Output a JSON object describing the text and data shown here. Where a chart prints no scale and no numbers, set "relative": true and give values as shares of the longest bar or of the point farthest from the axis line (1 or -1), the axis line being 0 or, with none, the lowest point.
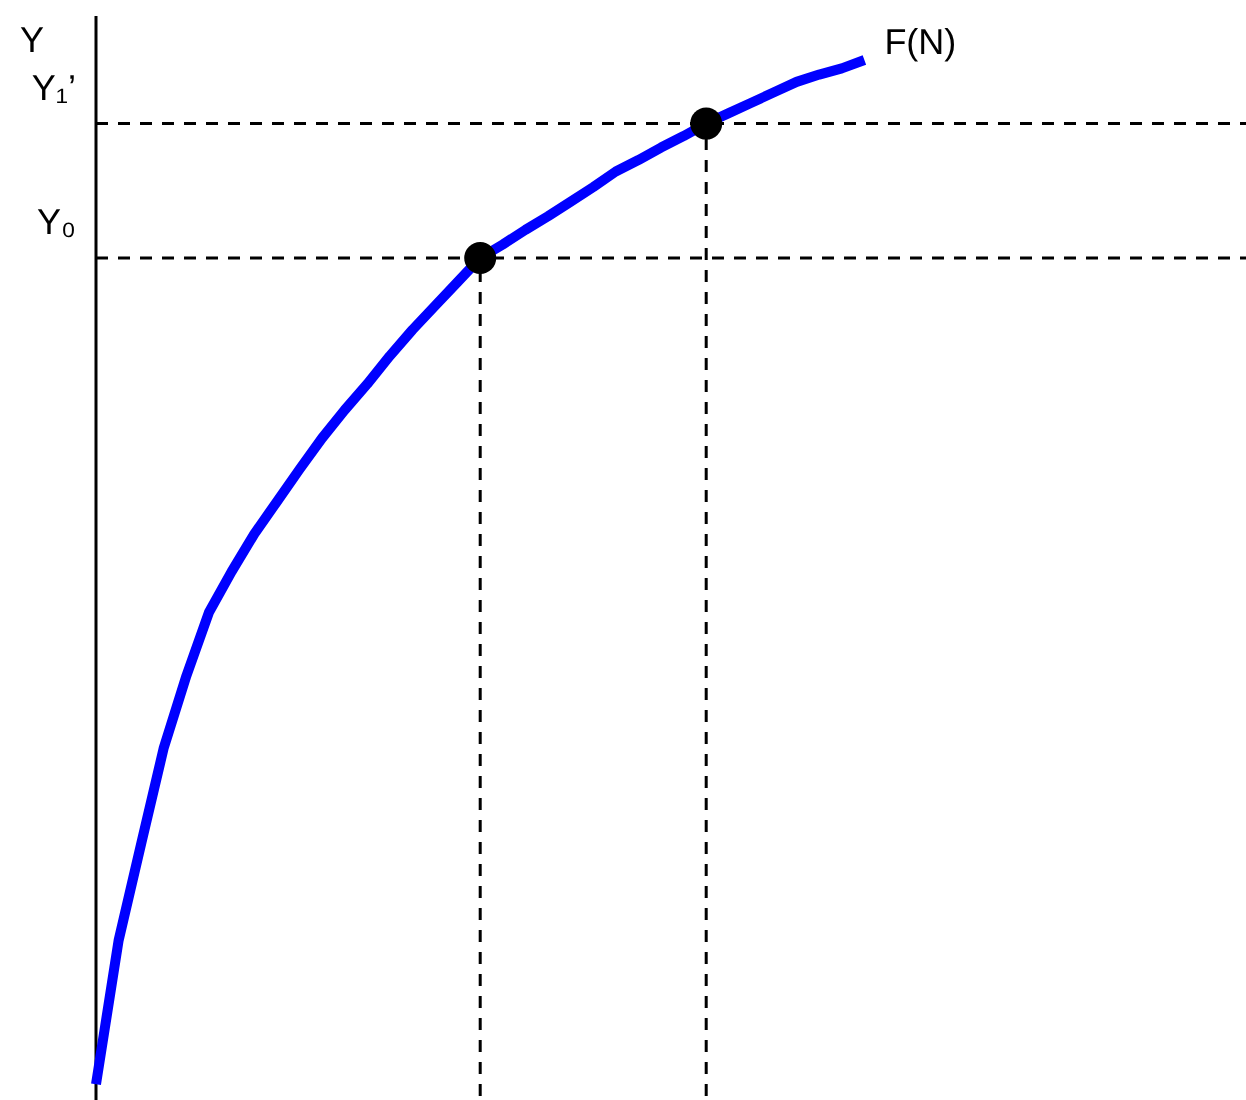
{
  "chart_data": {
    "type": "line",
    "relative": true,
    "ylabel": "Y",
    "legend": false,
    "categories": [
      null,
      null,
      null,
      null,
      null,
      null,
      null,
      null,
      null,
      null,
      null,
      null,
      null,
      null,
      null,
      null,
      null,
      null,
      null,
      null,
      null,
      null,
      null,
      null,
      null,
      null,
      null,
      null,
      null,
      null,
      null,
      null,
      null,
      null,
      null,
      null,
      null,
      null,
      null,
      null,
      null,
      null,
      null,
      null,
      null,
      null,
      null,
      null
    ],
    "series": [
      {
        "name": "F(N)",
        "color": "#0000ff",
        "line_style": "solid",
        "marker": "none",
        "values": [
          0.017,
          0.155,
          0.248,
          0.34,
          0.409,
          0.47,
          0.509,
          0.545,
          0.576,
          0.607,
          0.637,
          0.664,
          0.689,
          0.716,
          0.741,
          0.764,
          0.787,
          0.81,
          0.823,
          0.837,
          0.85,
          0.864,
          0.878,
          0.893,
          0.904,
          0.916,
          0.927,
          0.939,
          0.949,
          0.959,
          0.969,
          0.979,
          0.986,
          0.992,
          1,
          null,
          null,
          null,
          null,
          null,
          null,
          null,
          null,
          null,
          null,
          null,
          null,
          null
        ]
      }
    ],
    "ref_lines": [
      {
        "axis": "y",
        "value": 0.81,
        "label": "Y₀",
        "line_style": "dashed",
        "color": "#000000"
      },
      {
        "axis": "y",
        "value": 0.939,
        "label": "Y₁’",
        "line_style": "dashed",
        "color": "#000000"
      }
    ]
  }
}
